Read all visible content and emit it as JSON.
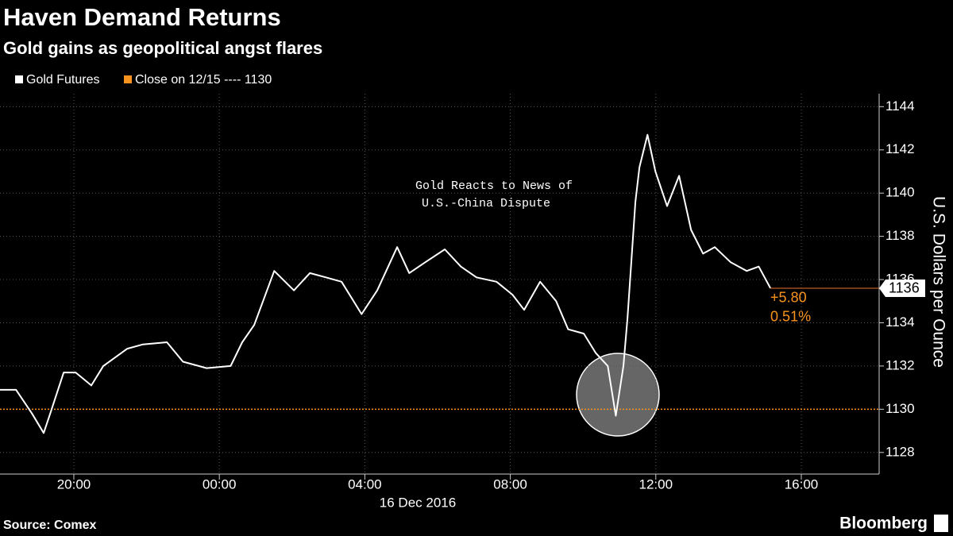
{
  "chart_data": {
    "type": "line",
    "title": "Haven Demand Returns",
    "subtitle": "Gold gains as geopolitical angst flares",
    "x_label": "16 Dec 2016",
    "y_label": "U.S. Dollars per Ounce",
    "annotation": [
      "Gold Reacts to News of",
      "U.S.-China Dispute"
    ],
    "source": "Source: Comex",
    "brand": "Bloomberg",
    "x": [
      -6.03,
      -5.59,
      -5.15,
      -4.83,
      -4.61,
      -4.28,
      -3.95,
      -3.52,
      -3.19,
      -2.53,
      -2.1,
      -1.44,
      -1.0,
      -0.35,
      0.31,
      0.63,
      0.96,
      1.51,
      2.05,
      2.49,
      2.93,
      3.36,
      3.91,
      4.34,
      4.89,
      5.22,
      5.66,
      6.2,
      6.64,
      7.07,
      7.62,
      8.06,
      8.38,
      8.82,
      9.26,
      9.59,
      10.02,
      10.35,
      10.68,
      10.9,
      11.11,
      11.22,
      11.44,
      11.55,
      11.77,
      11.99,
      12.31,
      12.64,
      12.97,
      13.3,
      13.62,
      14.06,
      14.5,
      14.83,
      15.15
    ],
    "series": [
      {
        "name": "Gold Futures",
        "color": "#ffffff",
        "values": [
          1130.9,
          1130.9,
          1129.8,
          1128.9,
          1130.0,
          1131.7,
          1131.7,
          1131.1,
          1132.0,
          1132.8,
          1133.0,
          1133.1,
          1132.2,
          1131.9,
          1132.0,
          1133.1,
          1133.9,
          1136.4,
          1135.5,
          1136.3,
          1136.1,
          1135.9,
          1134.4,
          1135.5,
          1137.5,
          1136.3,
          1136.8,
          1137.4,
          1136.6,
          1136.1,
          1135.9,
          1135.3,
          1134.6,
          1135.9,
          1135.0,
          1133.7,
          1133.5,
          1132.6,
          1132.0,
          1129.7,
          1132.0,
          1134.2,
          1139.6,
          1141.2,
          1142.7,
          1141.0,
          1139.4,
          1140.8,
          1138.3,
          1137.2,
          1137.5,
          1136.8,
          1136.4,
          1136.6,
          1135.6
        ]
      }
    ],
    "reference": {
      "name": "Close on 12/15 ---- 1130",
      "value": 1130,
      "color": "#f7931e"
    },
    "last_value_label": "1136",
    "change_labels": [
      "+5.80",
      "0.51%"
    ],
    "xlim": [
      -6.03,
      18.14
    ],
    "xticks": [
      {
        "value": -4,
        "label": "20:00"
      },
      {
        "value": 0,
        "label": "00:00"
      },
      {
        "value": 4,
        "label": "04:00"
      },
      {
        "value": 8,
        "label": "08:00"
      },
      {
        "value": 12,
        "label": "12:00"
      },
      {
        "value": 16,
        "label": "16:00"
      }
    ],
    "ylim": [
      1127,
      1144.6
    ],
    "yticks": [
      1128,
      1130,
      1132,
      1134,
      1136,
      1138,
      1140,
      1142,
      1144
    ],
    "grid": true
  }
}
